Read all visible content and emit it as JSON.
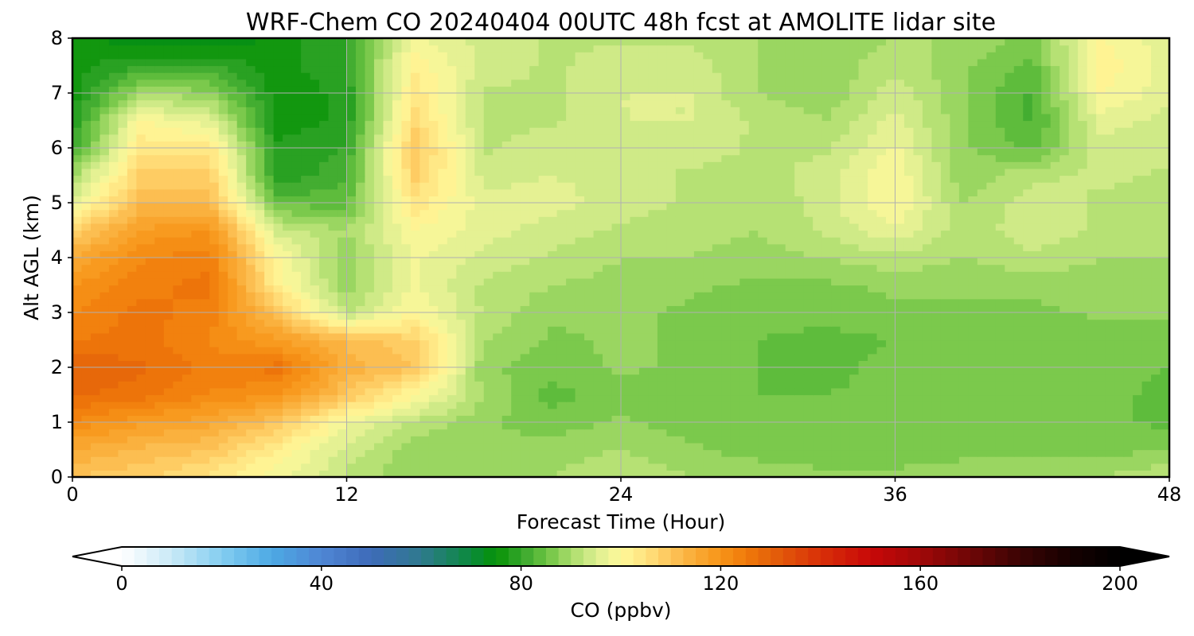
{
  "chart_data": {
    "type": "heatmap",
    "title": "WRF-Chem CO  20240404 00UTC 48h fcst at AMOLITE lidar site",
    "xlabel": "Forecast Time (Hour)",
    "ylabel": "Alt AGL (km)",
    "xlim": [
      0,
      48
    ],
    "ylim": [
      0,
      8
    ],
    "x_ticks": [
      "0",
      "12",
      "24",
      "36",
      "48"
    ],
    "y_ticks": [
      "0",
      "1",
      "2",
      "3",
      "4",
      "5",
      "6",
      "7",
      "8"
    ],
    "grid": true,
    "x": [
      0,
      3,
      6,
      9,
      12,
      15,
      18,
      21,
      24,
      27,
      30,
      33,
      36,
      39,
      42,
      45,
      48
    ],
    "y": [
      0,
      0.5,
      1,
      1.5,
      2,
      2.5,
      3,
      3.5,
      4,
      4.5,
      5,
      5.5,
      6,
      6.5,
      7,
      7.5,
      8
    ],
    "z": [
      [
        110,
        108,
        104,
        98,
        92,
        88,
        88,
        90,
        92,
        90,
        90,
        88,
        88,
        90,
        90,
        90,
        92
      ],
      [
        115,
        112,
        110,
        102,
        94,
        88,
        88,
        89,
        90,
        88,
        86,
        86,
        86,
        86,
        86,
        86,
        88
      ],
      [
        122,
        118,
        116,
        110,
        98,
        92,
        88,
        86,
        88,
        86,
        86,
        86,
        86,
        86,
        86,
        86,
        84
      ],
      [
        128,
        126,
        122,
        120,
        110,
        100,
        90,
        84,
        86,
        86,
        85,
        85,
        86,
        86,
        86,
        86,
        84
      ],
      [
        130,
        128,
        124,
        126,
        114,
        110,
        88,
        86,
        88,
        87,
        85,
        84,
        86,
        85,
        86,
        86,
        85
      ],
      [
        125,
        126,
        122,
        118,
        112,
        108,
        90,
        87,
        88,
        87,
        85,
        84,
        85,
        85,
        85,
        86,
        86
      ],
      [
        122,
        126,
        124,
        110,
        92,
        100,
        92,
        88,
        88,
        87,
        86,
        86,
        87,
        87,
        87,
        88,
        88
      ],
      [
        120,
        124,
        126,
        102,
        88,
        98,
        92,
        90,
        89,
        88,
        87,
        87,
        88,
        88,
        88,
        89,
        89
      ],
      [
        115,
        122,
        124,
        100,
        88,
        98,
        94,
        92,
        90,
        90,
        89,
        90,
        92,
        90,
        92,
        90,
        90
      ],
      [
        108,
        118,
        120,
        94,
        90,
        100,
        96,
        94,
        92,
        91,
        90,
        93,
        97,
        91,
        94,
        92,
        90
      ],
      [
        96,
        112,
        112,
        84,
        84,
        104,
        96,
        96,
        94,
        92,
        90,
        94,
        100,
        90,
        94,
        92,
        92
      ],
      [
        90,
        108,
        108,
        78,
        82,
        108,
        94,
        95,
        94,
        92,
        91,
        94,
        100,
        88,
        92,
        93,
        92
      ],
      [
        80,
        104,
        104,
        78,
        80,
        110,
        92,
        94,
        94,
        94,
        92,
        92,
        98,
        88,
        84,
        94,
        94
      ],
      [
        78,
        100,
        96,
        76,
        78,
        106,
        92,
        92,
        95,
        95,
        92,
        90,
        96,
        88,
        82,
        96,
        94
      ],
      [
        76,
        90,
        88,
        76,
        78,
        104,
        92,
        92,
        95,
        95,
        90,
        88,
        94,
        88,
        82,
        100,
        96
      ],
      [
        76,
        80,
        80,
        76,
        80,
        102,
        94,
        92,
        94,
        94,
        90,
        88,
        92,
        88,
        84,
        102,
        96
      ],
      [
        78,
        72,
        72,
        76,
        80,
        98,
        94,
        92,
        92,
        92,
        90,
        88,
        90,
        90,
        86,
        100,
        96
      ]
    ],
    "colorbar": {
      "label": "CO  (ppbv)",
      "min": 0,
      "max": 200,
      "step": 2.5,
      "extend": "both",
      "ticks": [
        "0",
        "40",
        "80",
        "120",
        "160",
        "200"
      ],
      "tick_values": [
        0,
        40,
        80,
        120,
        160,
        200
      ]
    },
    "colormap": [
      [
        0,
        "#ffffff"
      ],
      [
        10,
        "#c9e9f7"
      ],
      [
        20,
        "#84cdf0"
      ],
      [
        30,
        "#4da9e4"
      ],
      [
        40,
        "#4f86d4"
      ],
      [
        50,
        "#3e6bb8"
      ],
      [
        60,
        "#2f7a8e"
      ],
      [
        70,
        "#0a8a3c"
      ],
      [
        75,
        "#069206"
      ],
      [
        80,
        "#35a62b"
      ],
      [
        85,
        "#6cc341"
      ],
      [
        90,
        "#a9dc6b"
      ],
      [
        95,
        "#dcef90"
      ],
      [
        100,
        "#fff89a"
      ],
      [
        105,
        "#ffe27f"
      ],
      [
        110,
        "#fdc55a"
      ],
      [
        115,
        "#f9aa35"
      ],
      [
        120,
        "#f79418"
      ],
      [
        125,
        "#f07a0a"
      ],
      [
        130,
        "#e4620a"
      ],
      [
        140,
        "#d83008"
      ],
      [
        150,
        "#c80808"
      ],
      [
        160,
        "#a00808"
      ],
      [
        170,
        "#6e0606"
      ],
      [
        180,
        "#3a0404"
      ],
      [
        190,
        "#160101"
      ],
      [
        200,
        "#000000"
      ]
    ]
  }
}
